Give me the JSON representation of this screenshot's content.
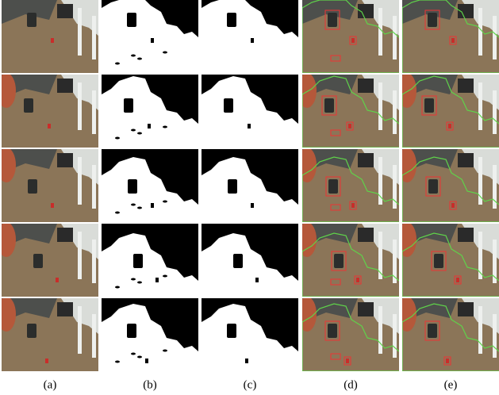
{
  "captions": [
    "(a)",
    "(b)",
    "(c)",
    "(d)",
    "(e)"
  ]
}
